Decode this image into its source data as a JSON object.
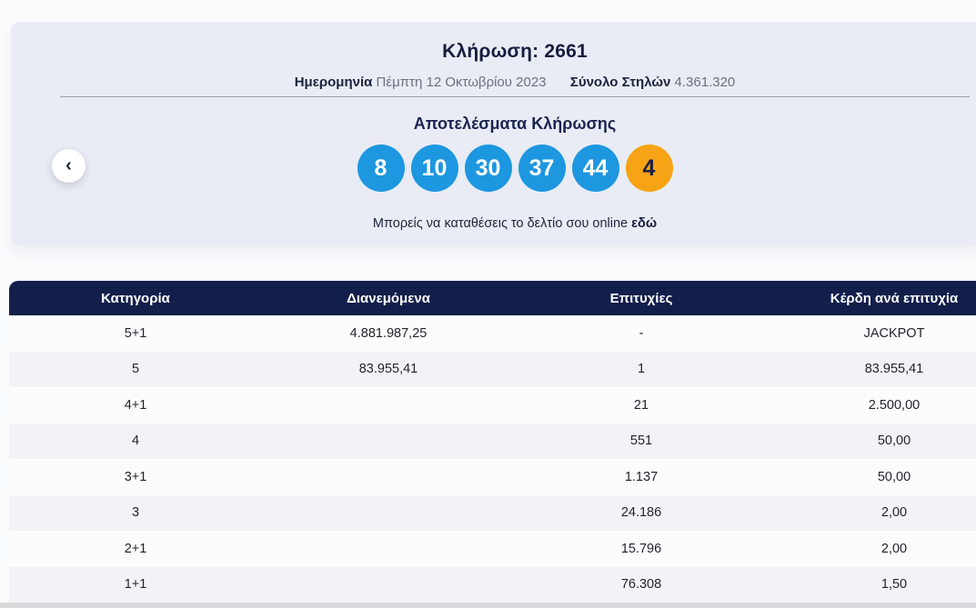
{
  "colors": {
    "ball_blue": "#1d97e0",
    "ball_bonus_orange": "#f6a415",
    "header_navy": "#131f4b",
    "card_bg": "#e9ecf4"
  },
  "draw": {
    "title": "Κλήρωση: 2661",
    "date_label": "Ημερομηνία",
    "date_value": "Πέμπτη 12 Οκτωβρίου 2023",
    "columns_label": "Σύνολο Στηλών",
    "columns_value": "4.361.320",
    "results_heading": "Αποτελέσματα Κλήρωσης",
    "numbers": [
      "8",
      "10",
      "30",
      "37",
      "44"
    ],
    "bonus_number": "4",
    "note_text": "Μπορείς να καταθέσεις το δελτίο σου online ",
    "note_link_label": "εδώ"
  },
  "nav": {
    "prev_icon": "‹"
  },
  "table": {
    "headers": [
      "Κατηγορία",
      "Διανεμόμενα",
      "Επιτυχίες",
      "Κέρδη ανά επιτυχία"
    ],
    "rows": [
      [
        "5+1",
        "4.881.987,25",
        "-",
        "JACKPOT"
      ],
      [
        "5",
        "83.955,41",
        "1",
        "83.955,41"
      ],
      [
        "4+1",
        "",
        "21",
        "2.500,00"
      ],
      [
        "4",
        "",
        "551",
        "50,00"
      ],
      [
        "3+1",
        "",
        "1.137",
        "50,00"
      ],
      [
        "3",
        "",
        "24.186",
        "2,00"
      ],
      [
        "2+1",
        "",
        "15.796",
        "2,00"
      ],
      [
        "1+1",
        "",
        "76.308",
        "1,50"
      ]
    ]
  }
}
